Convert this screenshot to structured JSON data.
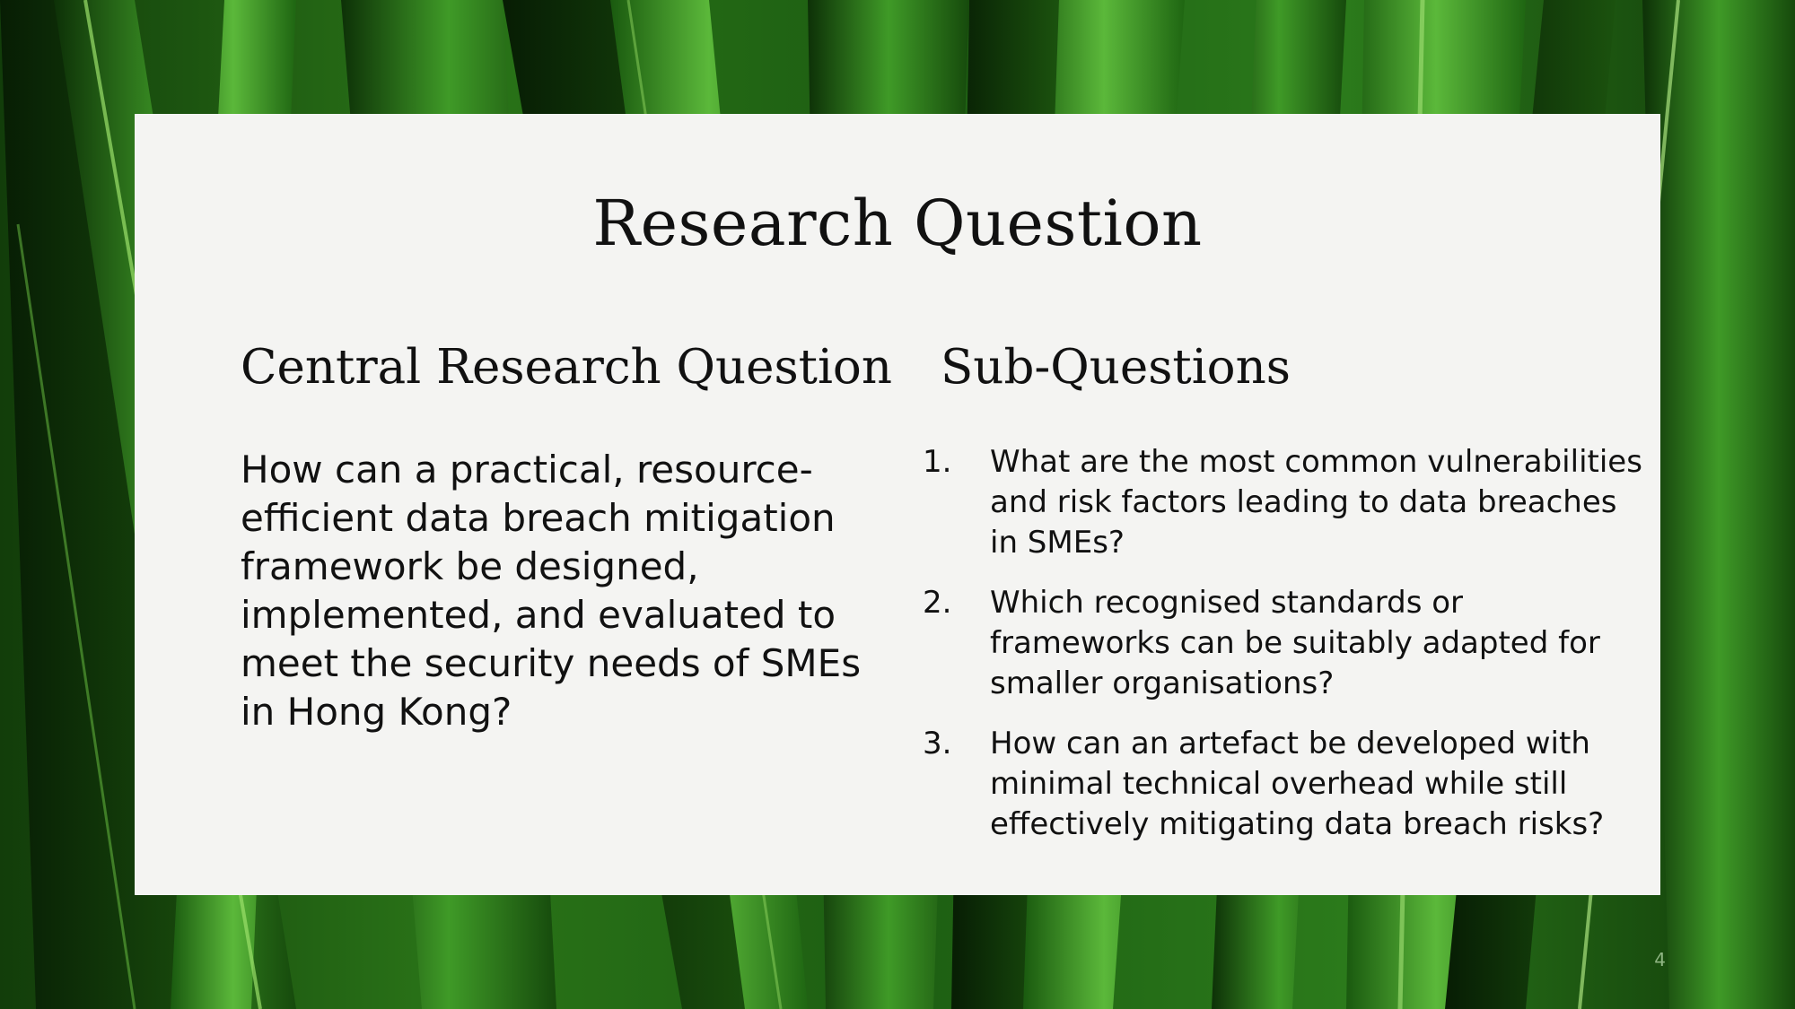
{
  "slide": {
    "title": "Research Question",
    "slide_number": "4",
    "background": "green-leaf-blades",
    "colors": {
      "card": "#f4f4f2",
      "text": "#111111",
      "leaf_dark": "#0c2a06",
      "leaf_mid": "#2f7d1d",
      "leaf_light": "#7fcf4b"
    }
  },
  "central": {
    "heading": "Central Research Question",
    "text": "How can a practical, resource-efficient data breach mitigation framework be designed, implemented, and evaluated to meet the security needs of SMEs in Hong Kong?"
  },
  "sub": {
    "heading": "Sub-Questions",
    "items": [
      {
        "num": "1.",
        "text": "What are the most common vulnerabilities and risk factors leading to data breaches in SMEs?"
      },
      {
        "num": "2.",
        "text": "Which recognised standards or frameworks can be suitably adapted for smaller organisations?"
      },
      {
        "num": "3.",
        "text": "How can an artefact be developed with minimal technical overhead while still effectively mitigating data breach risks?"
      }
    ]
  }
}
